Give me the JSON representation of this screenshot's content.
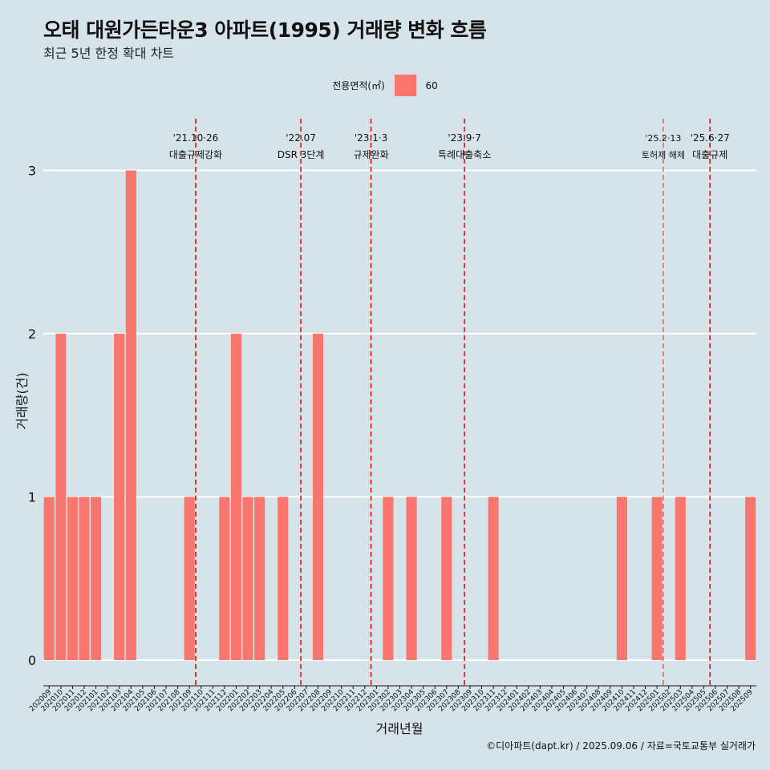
{
  "title": "오태 대원가든타운3 아파트(1995) 거래량 변화 흐름",
  "subtitle": "최근 5년 한정 확대 차트",
  "caption": "©디아파트(dapt.kr) / 2025.09.06 / 자료=국토교통부 실거래가",
  "colors": {
    "background": "#d6e4ea",
    "bar": "#f8766d",
    "event_line": "#e8201f",
    "grid": "#ffffff"
  },
  "legend": {
    "title": "전용면적(㎡)",
    "label": "60"
  },
  "chart_data": {
    "type": "bar",
    "xlabel": "거래년월",
    "ylabel": "거래량(건)",
    "ylim": [
      0,
      3
    ],
    "y_ticks": [
      0,
      1,
      2,
      3
    ],
    "grid": true,
    "legend_position": "top",
    "categories": [
      "202009",
      "202010",
      "202011",
      "202012",
      "202101",
      "202102",
      "202103",
      "202104",
      "202105",
      "202106",
      "202107",
      "202108",
      "202109",
      "202110",
      "202111",
      "202112",
      "202201",
      "202202",
      "202203",
      "202204",
      "202205",
      "202206",
      "202207",
      "202208",
      "202209",
      "202210",
      "202211",
      "202212",
      "202301",
      "202302",
      "202303",
      "202304",
      "202305",
      "202306",
      "202307",
      "202308",
      "202309",
      "202310",
      "202311",
      "202312",
      "202401",
      "202402",
      "202403",
      "202404",
      "202405",
      "202406",
      "202407",
      "202408",
      "202409",
      "202410",
      "202411",
      "202412",
      "202501",
      "202502",
      "202503",
      "202504",
      "202505",
      "202506",
      "202507",
      "202508",
      "202509"
    ],
    "series": [
      {
        "name": "60",
        "values": [
          1,
          2,
          1,
          1,
          1,
          0,
          2,
          3,
          0,
          0,
          0,
          0,
          1,
          0,
          0,
          1,
          2,
          1,
          1,
          0,
          1,
          0,
          0,
          2,
          0,
          0,
          0,
          0,
          0,
          1,
          0,
          1,
          0,
          0,
          1,
          0,
          0,
          0,
          1,
          0,
          0,
          0,
          0,
          0,
          0,
          0,
          0,
          0,
          0,
          1,
          0,
          0,
          1,
          0,
          1,
          0,
          0,
          0,
          0,
          0,
          1
        ]
      }
    ],
    "events": [
      {
        "x": "202110",
        "date": "'21.10·26",
        "label": "대출규제강화"
      },
      {
        "x": "202207",
        "date": "'22.07",
        "label": "DSR 3단계"
      },
      {
        "x": "202301",
        "date": "'23.1·3",
        "label": "규제완화"
      },
      {
        "x": "202309",
        "date": "'23.9·7",
        "label": "특례대출축소"
      },
      {
        "x": "202502",
        "date": "'25.2·13",
        "label": "토허제 해제"
      },
      {
        "x": "202506",
        "date": "'25.6·27",
        "label": "대출규제"
      }
    ]
  }
}
